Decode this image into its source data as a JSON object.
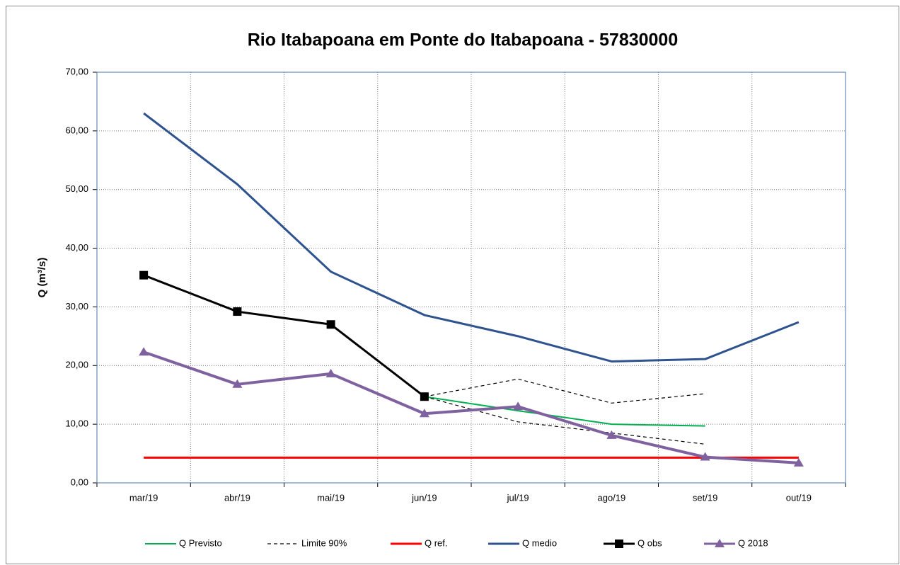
{
  "chart_data": {
    "type": "line",
    "title": "Rio Itabapoana em Ponte do Itabapoana - 57830000",
    "y_label": "Q (m³/s)",
    "categories": [
      "mar/19",
      "abr/19",
      "mai/19",
      "jun/19",
      "jul/19",
      "ago/19",
      "set/19",
      "out/19"
    ],
    "ylim": [
      0,
      70
    ],
    "yticks": [
      {
        "value": 0,
        "label": "0,00"
      },
      {
        "value": 10,
        "label": "10,00"
      },
      {
        "value": 20,
        "label": "20,00"
      },
      {
        "value": 30,
        "label": "30,00"
      },
      {
        "value": 40,
        "label": "40,00"
      },
      {
        "value": 50,
        "label": "50,00"
      },
      {
        "value": 60,
        "label": "60,00"
      },
      {
        "value": 70,
        "label": "70,00"
      }
    ],
    "grid": true,
    "legend": "bottom",
    "series": [
      {
        "name": "Q Previsto",
        "color": "#00b050",
        "width": 2,
        "values": [
          null,
          null,
          null,
          14.7,
          12.3,
          10.0,
          9.7,
          null
        ]
      },
      {
        "name": "Limite 90%",
        "color": "#000000",
        "width": 1.2,
        "dashed": true,
        "values": [
          null,
          null,
          null,
          14.7,
          17.7,
          13.6,
          15.2,
          null
        ],
        "lower": [
          null,
          null,
          null,
          14.7,
          10.4,
          8.5,
          6.6,
          null
        ]
      },
      {
        "name": "Q ref.",
        "color": "#ff0000",
        "width": 3,
        "values": [
          4.3,
          4.3,
          4.3,
          4.3,
          4.3,
          4.3,
          4.3,
          4.3
        ]
      },
      {
        "name": "Q medio",
        "color": "#2e538f",
        "width": 3,
        "values": [
          63.0,
          50.9,
          36.0,
          28.6,
          25.0,
          20.7,
          21.1,
          27.4
        ]
      },
      {
        "name": "Q obs",
        "color": "#000000",
        "width": 3,
        "marker": "square",
        "values": [
          35.4,
          29.2,
          27.0,
          14.7,
          null,
          null,
          null,
          null
        ]
      },
      {
        "name": "Q 2018",
        "color": "#7f61a0",
        "width": 4,
        "marker": "triangle",
        "values": [
          22.3,
          16.8,
          18.6,
          11.8,
          13.0,
          8.1,
          4.4,
          3.4
        ]
      }
    ]
  }
}
